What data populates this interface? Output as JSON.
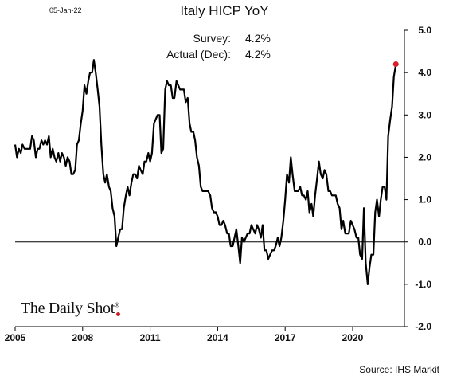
{
  "header": {
    "date_stamp": "05-Jan-22",
    "title": "Italy HICP YoY"
  },
  "annotations": [
    {
      "label": "Survey:",
      "value": "4.2%"
    },
    {
      "label": "Actual (Dec):",
      "value": "4.2%"
    }
  ],
  "footer": {
    "source": "Source: IHS Markit",
    "logo_text": "The Daily Shot",
    "logo_mark": "®"
  },
  "colors": {
    "line": "#000000",
    "marker": "#d9202a",
    "axis": "#000000"
  },
  "chart_data": {
    "type": "line",
    "title": "Italy HICP YoY",
    "xlabel": "",
    "ylabel": "",
    "xlim": [
      2005.0,
      2022.3
    ],
    "ylim": [
      -2.0,
      5.0
    ],
    "x_ticks": [
      2005,
      2008,
      2011,
      2014,
      2017,
      2020
    ],
    "x_tick_labels": [
      "2005",
      "2008",
      "2011",
      "2014",
      "2017",
      "2020"
    ],
    "y_ticks": [
      -2.0,
      -1.0,
      0.0,
      1.0,
      2.0,
      3.0,
      4.0,
      5.0
    ],
    "y_tick_labels": [
      "-2.0",
      "-1.0",
      "0.0",
      "1.0",
      "2.0",
      "3.0",
      "4.0",
      "5.0"
    ],
    "zero_line": true,
    "grid": false,
    "y_axis_side": "right",
    "series": [
      {
        "x": [
          2005.0,
          2005.08,
          2005.17,
          2005.25,
          2005.33,
          2005.42,
          2005.5,
          2005.58,
          2005.67,
          2005.75,
          2005.83,
          2005.92,
          2006.0,
          2006.08,
          2006.17,
          2006.25,
          2006.33,
          2006.42,
          2006.5,
          2006.58,
          2006.67,
          2006.75,
          2006.83,
          2006.92,
          2007.0,
          2007.08,
          2007.17,
          2007.25,
          2007.33,
          2007.42,
          2007.5,
          2007.58,
          2007.67,
          2007.75,
          2007.83,
          2007.92,
          2008.0,
          2008.08,
          2008.17,
          2008.25,
          2008.33,
          2008.42,
          2008.5,
          2008.58,
          2008.67,
          2008.75,
          2008.83,
          2008.92,
          2009.0,
          2009.08,
          2009.17,
          2009.25,
          2009.33,
          2009.42,
          2009.5,
          2009.58,
          2009.67,
          2009.75,
          2009.83,
          2009.92,
          2010.0,
          2010.08,
          2010.17,
          2010.25,
          2010.33,
          2010.42,
          2010.5,
          2010.58,
          2010.67,
          2010.75,
          2010.83,
          2010.92,
          2011.0,
          2011.08,
          2011.17,
          2011.25,
          2011.33,
          2011.42,
          2011.5,
          2011.58,
          2011.67,
          2011.75,
          2011.83,
          2011.92,
          2012.0,
          2012.08,
          2012.17,
          2012.25,
          2012.33,
          2012.42,
          2012.5,
          2012.58,
          2012.67,
          2012.75,
          2012.83,
          2012.92,
          2013.0,
          2013.08,
          2013.17,
          2013.25,
          2013.33,
          2013.42,
          2013.5,
          2013.58,
          2013.67,
          2013.75,
          2013.83,
          2013.92,
          2014.0,
          2014.08,
          2014.17,
          2014.25,
          2014.33,
          2014.42,
          2014.5,
          2014.58,
          2014.67,
          2014.75,
          2014.83,
          2014.92,
          2015.0,
          2015.08,
          2015.17,
          2015.25,
          2015.33,
          2015.42,
          2015.5,
          2015.58,
          2015.67,
          2015.75,
          2015.83,
          2015.92,
          2016.0,
          2016.08,
          2016.17,
          2016.25,
          2016.33,
          2016.42,
          2016.5,
          2016.58,
          2016.67,
          2016.75,
          2016.83,
          2016.92,
          2017.0,
          2017.08,
          2017.17,
          2017.25,
          2017.33,
          2017.42,
          2017.5,
          2017.58,
          2017.67,
          2017.75,
          2017.83,
          2017.92,
          2018.0,
          2018.08,
          2018.17,
          2018.25,
          2018.33,
          2018.42,
          2018.5,
          2018.58,
          2018.67,
          2018.75,
          2018.83,
          2018.92,
          2019.0,
          2019.08,
          2019.17,
          2019.25,
          2019.33,
          2019.42,
          2019.5,
          2019.58,
          2019.67,
          2019.75,
          2019.83,
          2019.92,
          2020.0,
          2020.08,
          2020.17,
          2020.25,
          2020.33,
          2020.42,
          2020.5,
          2020.58,
          2020.67,
          2020.75,
          2020.83,
          2020.92,
          2021.0,
          2021.08,
          2021.17,
          2021.25,
          2021.33,
          2021.42,
          2021.5,
          2021.58,
          2021.67,
          2021.75,
          2021.83,
          2021.92
        ],
        "y": [
          2.3,
          2.0,
          2.2,
          2.1,
          2.3,
          2.2,
          2.2,
          2.2,
          2.2,
          2.5,
          2.4,
          2.0,
          2.2,
          2.2,
          2.4,
          2.3,
          2.4,
          2.3,
          2.5,
          2.0,
          2.2,
          2.0,
          1.9,
          2.1,
          1.9,
          2.1,
          2.0,
          1.8,
          2.0,
          1.9,
          1.6,
          1.6,
          1.7,
          2.3,
          2.4,
          2.8,
          3.1,
          3.7,
          3.5,
          3.8,
          4.0,
          4.0,
          4.3,
          4.0,
          3.6,
          3.2,
          2.3,
          1.6,
          1.4,
          1.6,
          1.3,
          1.2,
          0.8,
          0.6,
          -0.1,
          0.1,
          0.3,
          0.3,
          0.8,
          1.1,
          1.3,
          1.1,
          1.4,
          1.6,
          1.6,
          1.5,
          1.8,
          1.7,
          1.6,
          1.9,
          1.9,
          2.1,
          1.9,
          2.1,
          2.8,
          2.9,
          3.0,
          3.0,
          2.1,
          2.2,
          3.6,
          3.8,
          3.7,
          3.7,
          3.4,
          3.4,
          3.8,
          3.7,
          3.6,
          3.6,
          3.6,
          3.3,
          3.4,
          2.8,
          2.6,
          2.6,
          2.4,
          2.0,
          1.8,
          1.3,
          1.2,
          1.2,
          1.2,
          1.2,
          1.1,
          0.8,
          0.7,
          0.7,
          0.6,
          0.4,
          0.4,
          0.5,
          0.4,
          0.2,
          0.2,
          -0.1,
          -0.1,
          0.1,
          0.3,
          -0.1,
          -0.5,
          0.1,
          0.0,
          0.1,
          0.2,
          0.2,
          0.4,
          0.3,
          0.2,
          0.4,
          0.3,
          0.1,
          0.4,
          -0.2,
          -0.2,
          -0.4,
          -0.3,
          -0.2,
          -0.2,
          -0.1,
          0.1,
          -0.1,
          0.1,
          0.5,
          1.0,
          1.6,
          1.4,
          2.0,
          1.6,
          1.2,
          1.2,
          1.2,
          1.3,
          1.1,
          1.1,
          1.0,
          1.2,
          0.7,
          0.9,
          0.6,
          1.1,
          1.5,
          1.9,
          1.6,
          1.5,
          1.7,
          1.6,
          1.2,
          1.2,
          1.1,
          1.1,
          1.1,
          0.9,
          0.8,
          0.3,
          0.5,
          0.2,
          0.2,
          0.2,
          0.5,
          0.4,
          0.3,
          0.1,
          0.1,
          -0.3,
          -0.4,
          0.8,
          -0.5,
          -1.0,
          -0.6,
          -0.3,
          -0.3,
          0.7,
          1.0,
          0.6,
          1.0,
          1.3,
          1.3,
          1.0,
          2.5,
          2.9,
          3.2,
          3.9,
          4.2
        ]
      }
    ],
    "last_point_highlight": {
      "x": 2021.92,
      "y": 4.2
    }
  }
}
